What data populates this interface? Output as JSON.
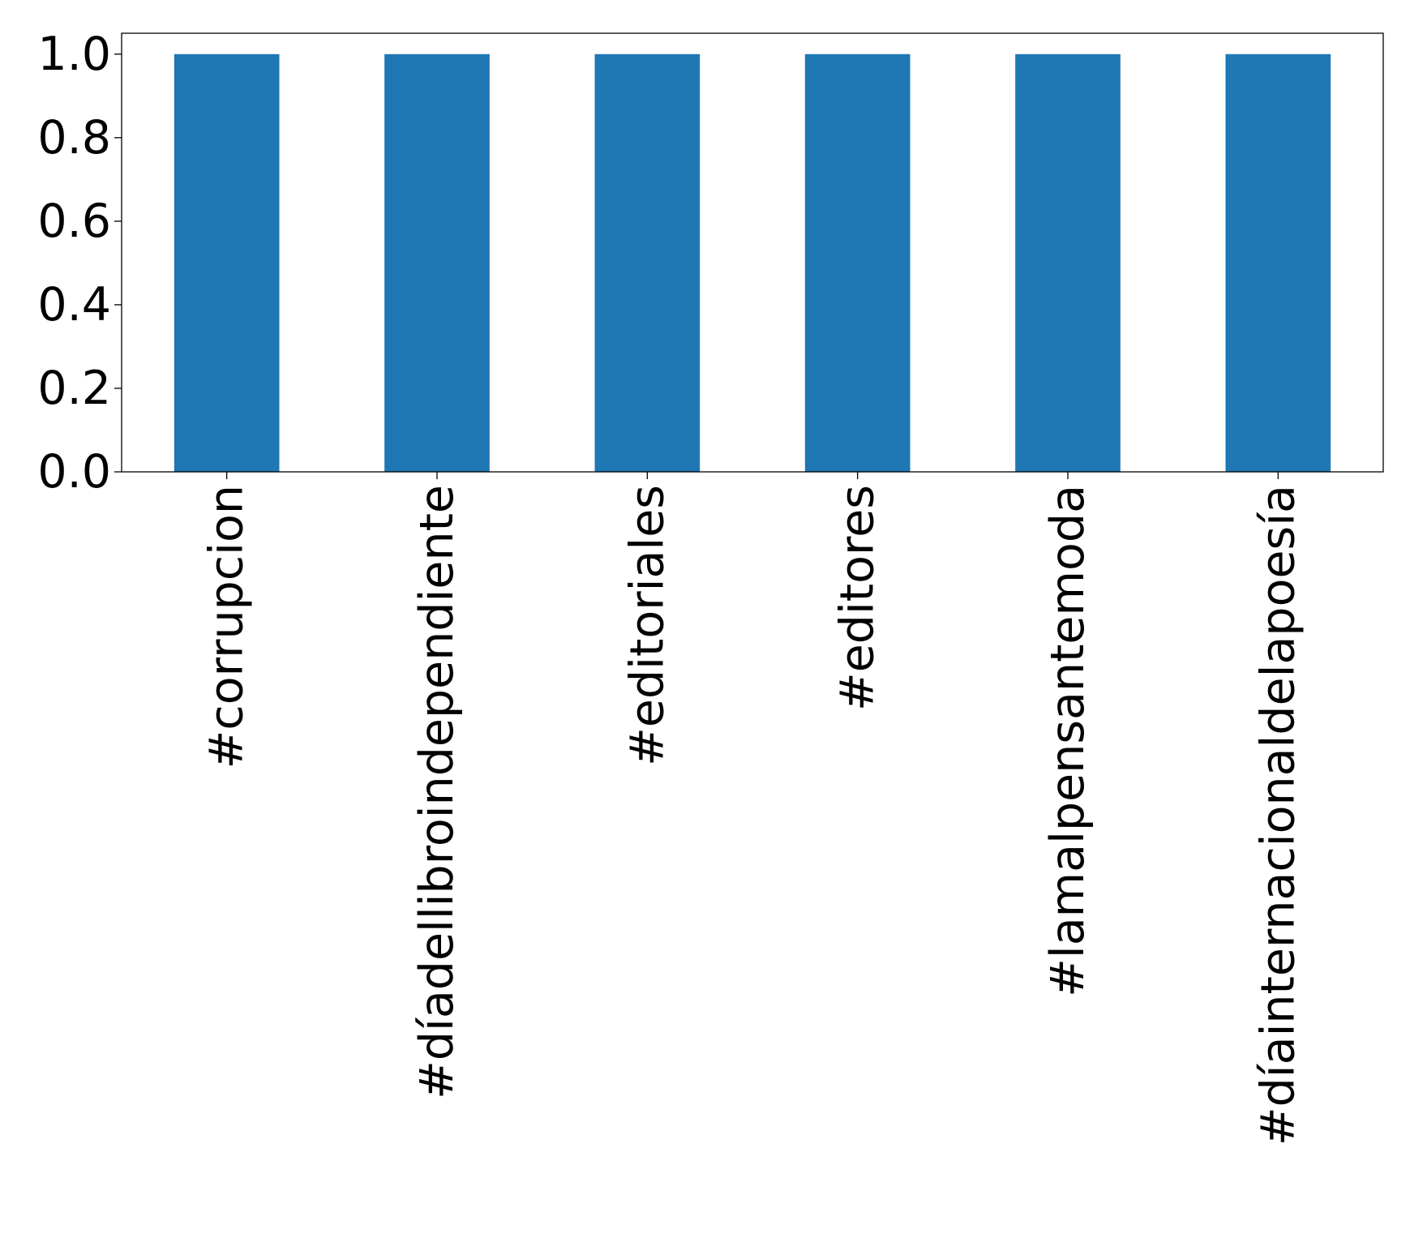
{
  "chart_data": {
    "type": "bar",
    "title": "",
    "xlabel": "",
    "ylabel": "",
    "categories": [
      "#corrupcion",
      "#díadellibroindependiente",
      "#editoriales",
      "#editores",
      "#lamalpensantemoda",
      "#díainternacionaldelapoesía"
    ],
    "values": [
      1,
      1,
      1,
      1,
      1,
      1
    ],
    "ylim": [
      0,
      1.05
    ],
    "yticks": [
      "0.0",
      "0.2",
      "0.4",
      "0.6",
      "0.8",
      "1.0"
    ],
    "grid": false,
    "legend": "none",
    "bar_color": "#1f77b4"
  }
}
